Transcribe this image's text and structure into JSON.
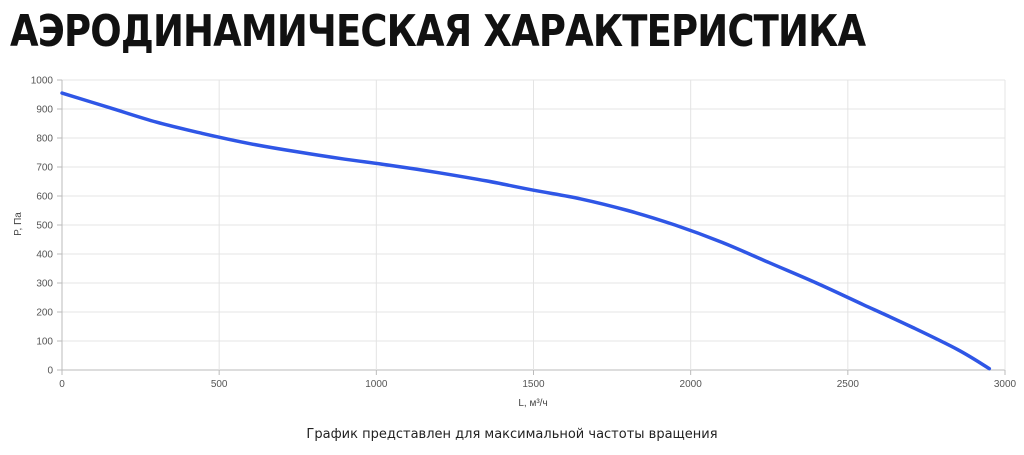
{
  "title": "АЭРОДИНАМИЧЕСКАЯ ХАРАКТЕРИСТИКА",
  "note": "График представлен для максимальной частоты вращения",
  "chart_data": {
    "type": "line",
    "xlabel": "L, м³/ч",
    "ylabel": "P, Па",
    "xlim": [
      0,
      3000
    ],
    "ylim": [
      0,
      1000
    ],
    "xticks": [
      0,
      500,
      1000,
      1500,
      2000,
      2500,
      3000
    ],
    "yticks": [
      0,
      100,
      200,
      300,
      400,
      500,
      600,
      700,
      800,
      900,
      1000
    ],
    "grid": true,
    "color": "#2f56e6",
    "series": [
      {
        "x": [
          0,
          150,
          300,
          450,
          600,
          750,
          900,
          1050,
          1200,
          1350,
          1500,
          1650,
          1800,
          1950,
          2100,
          2250,
          2400,
          2550,
          2700,
          2850,
          2950
        ],
        "y": [
          955,
          905,
          855,
          815,
          780,
          752,
          727,
          705,
          680,
          652,
          620,
          590,
          550,
          500,
          440,
          370,
          300,
          225,
          150,
          70,
          5
        ]
      }
    ]
  }
}
